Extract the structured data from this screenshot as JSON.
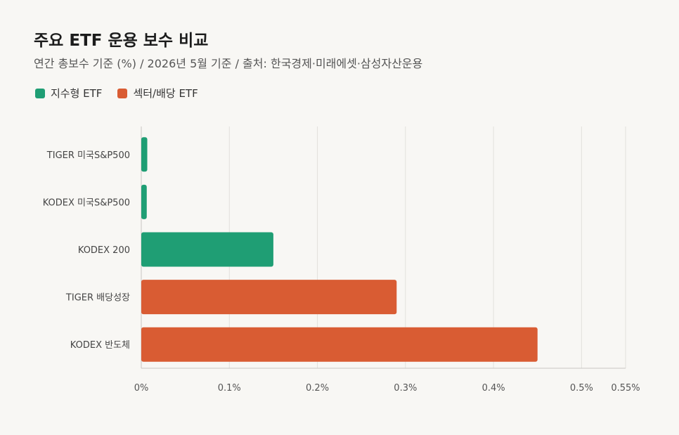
{
  "title": "주요 ETF 운용 보수 비교",
  "subtitle": "연간 총보수 기준 (%) / 2026년 5월 기준 / 출처: 한국경제·미래에셋·삼성자산운용",
  "legend": [
    {
      "label": "지수형 ETF",
      "color": "#1f9e74"
    },
    {
      "label": "섹터/배당 ETF",
      "color": "#d95c33"
    }
  ],
  "chart_data": {
    "type": "bar",
    "orientation": "horizontal",
    "categories": [
      "TIGER 미국S&P500",
      "KODEX 미국S&P500",
      "KODEX 200",
      "TIGER 배당성장",
      "KODEX 반도체"
    ],
    "values": [
      0.0068,
      0.0062,
      0.15,
      0.29,
      0.45
    ],
    "groups": [
      "지수형 ETF",
      "지수형 ETF",
      "지수형 ETF",
      "섹터/배당 ETF",
      "섹터/배당 ETF"
    ],
    "xlim": [
      0,
      0.55
    ],
    "xticks": [
      0,
      0.1,
      0.2,
      0.3,
      0.4,
      0.5,
      0.55
    ],
    "xtick_labels": [
      "0%",
      "0.1%",
      "0.2%",
      "0.3%",
      "0.4%",
      "0.5%",
      "0.55%"
    ],
    "grid": true,
    "legend_position": "top-left"
  }
}
